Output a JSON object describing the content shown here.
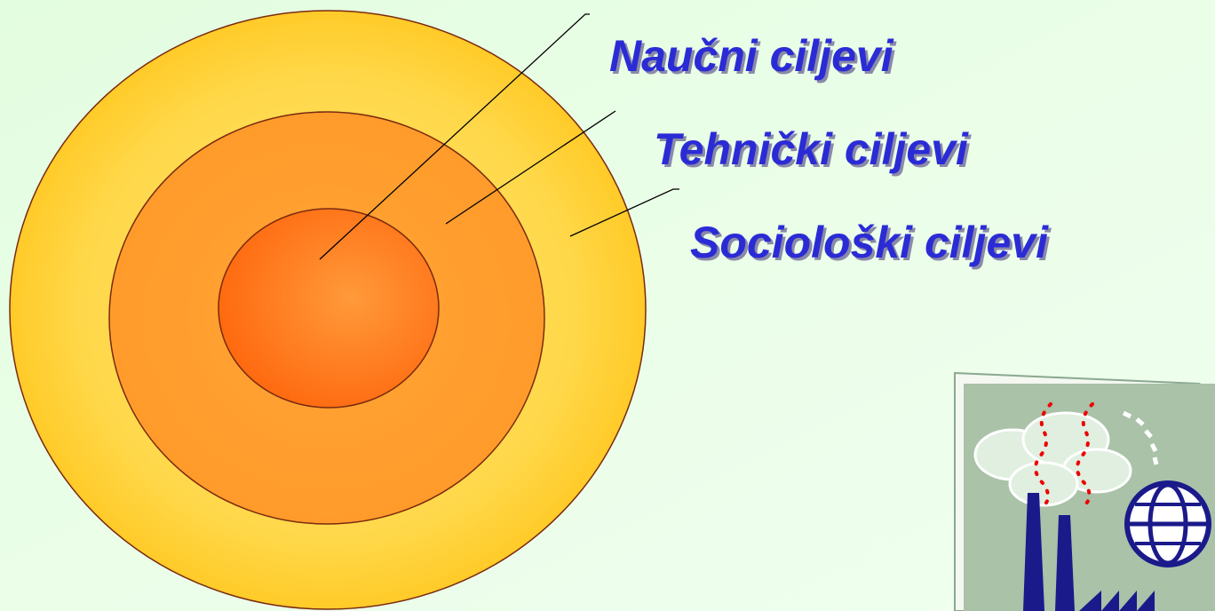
{
  "labels": [
    "Naučni ciljevi",
    "Tehnički ciljevi",
    "Sociološki ciljevi"
  ]
}
